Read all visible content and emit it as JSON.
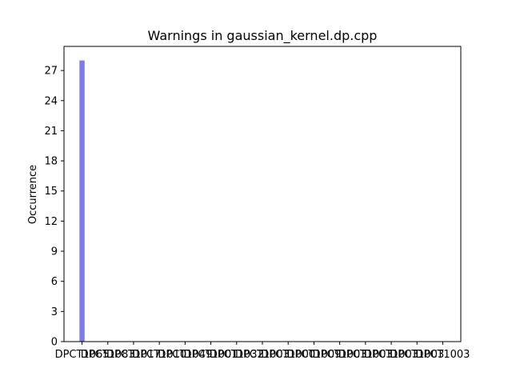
{
  "chart_data": {
    "type": "bar",
    "title": "Warnings in gaussian_kernel.dp.cpp",
    "xlabel": "",
    "ylabel": "Occurrence",
    "categories": [
      "DPCT1065",
      "DPCT1083",
      "DPCT1017",
      "DPCT1010",
      "DPCT1049",
      "DPCT1001",
      "DPCT1032",
      "DPCT1003",
      "DPCT1000",
      "DPCT1009",
      "DPCT1003",
      "DPCT1003",
      "DPCT1003",
      "DPCT1003",
      "DPCT1003"
    ],
    "values": [
      28,
      0,
      0,
      0,
      0,
      0,
      0,
      0,
      0,
      0,
      0,
      0,
      0,
      0,
      0
    ],
    "ylim": [
      0,
      29.4
    ],
    "yticks": [
      0,
      3,
      6,
      9,
      12,
      15,
      18,
      21,
      24,
      27
    ],
    "bar_color": "#7b7bea",
    "grid": false
  }
}
